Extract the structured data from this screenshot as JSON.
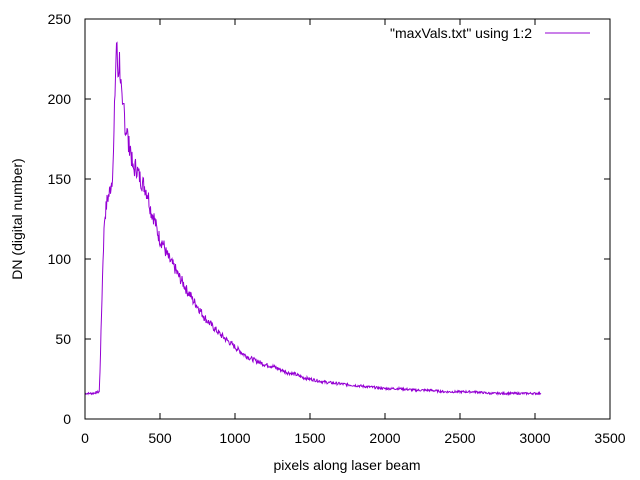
{
  "chart_data": {
    "type": "line",
    "title": "",
    "xlabel": "pixels along laser beam",
    "ylabel": "DN (digital number)",
    "xlim": [
      0,
      3500
    ],
    "ylim": [
      0,
      250
    ],
    "xticks": [
      0,
      500,
      1000,
      1500,
      2000,
      2500,
      3000,
      3500
    ],
    "yticks": [
      0,
      50,
      100,
      150,
      200,
      250
    ],
    "x_tick_labels": [
      "0",
      "500",
      "1000",
      "1500",
      "2000",
      "2500",
      "3000",
      "3500"
    ],
    "y_tick_labels": [
      "0",
      "50",
      "100",
      "150",
      "200",
      "250"
    ],
    "grid": false,
    "legend": "top-right",
    "series": [
      {
        "name": "\"maxVals.txt\" using 1:2",
        "color": "#9400d3",
        "x": [
          0,
          50,
          95,
          100,
          110,
          120,
          130,
          150,
          160,
          170,
          180,
          190,
          200,
          210,
          220,
          230,
          240,
          250,
          260,
          270,
          280,
          290,
          300,
          320,
          340,
          360,
          380,
          400,
          420,
          440,
          460,
          480,
          500,
          520,
          540,
          560,
          580,
          600,
          620,
          640,
          660,
          680,
          700,
          720,
          740,
          760,
          780,
          800,
          820,
          840,
          860,
          880,
          900,
          950,
          1000,
          1050,
          1100,
          1150,
          1200,
          1250,
          1300,
          1350,
          1400,
          1450,
          1500,
          1550,
          1600,
          1700,
          1800,
          1900,
          2000,
          2100,
          2200,
          2300,
          2400,
          2500,
          2600,
          2700,
          2800,
          2900,
          3000,
          3040
        ],
        "y": [
          16,
          16,
          17,
          30,
          65,
          100,
          125,
          138,
          140,
          145,
          150,
          165,
          205,
          236,
          215,
          225,
          208,
          190,
          195,
          180,
          183,
          170,
          172,
          155,
          158,
          152,
          148,
          145,
          140,
          130,
          126,
          118,
          112,
          110,
          104,
          100,
          97,
          94,
          90,
          87,
          84,
          80,
          78,
          74,
          72,
          69,
          66,
          63,
          61,
          59,
          57,
          55,
          53,
          49,
          45,
          41,
          38,
          36,
          34,
          33,
          31,
          29,
          28,
          26,
          25,
          24,
          23,
          22,
          21,
          20,
          19,
          19,
          18,
          18,
          17,
          17,
          17,
          16,
          16,
          16,
          16,
          16
        ]
      }
    ]
  }
}
